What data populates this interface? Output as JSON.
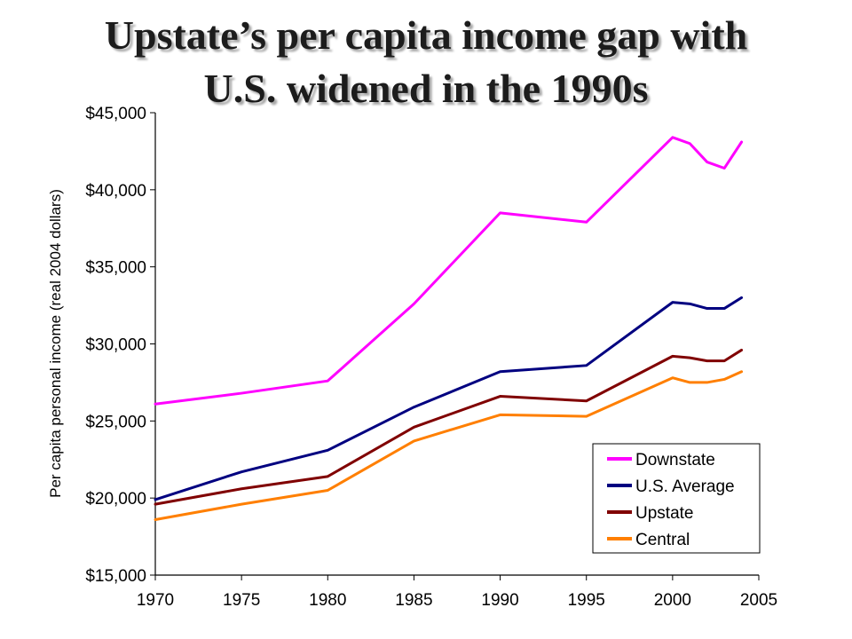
{
  "title_lines": [
    "Upstate’s per capita income gap with",
    "U.S. widened in the 1990s"
  ],
  "chart_data": {
    "type": "line",
    "title": "Upstate’s per capita income gap with U.S. widened in the 1990s",
    "xlabel": "",
    "ylabel": "Per capita personal income (real 2004 dollars)",
    "xlim": [
      1970,
      2005
    ],
    "ylim": [
      15000,
      45000
    ],
    "x_ticks": [
      1970,
      1975,
      1980,
      1985,
      1990,
      1995,
      2000,
      2005
    ],
    "y_ticks": [
      15000,
      20000,
      25000,
      30000,
      35000,
      40000,
      45000
    ],
    "x_tick_labels": [
      "1970",
      "1975",
      "1980",
      "1985",
      "1990",
      "1995",
      "2000",
      "2005"
    ],
    "y_tick_labels": [
      "$15,000",
      "$20,000",
      "$25,000",
      "$30,000",
      "$35,000",
      "$40,000",
      "$45,000"
    ],
    "grid": false,
    "legend_position": "bottom-right",
    "x": [
      1970,
      1975,
      1980,
      1985,
      1990,
      1995,
      2000,
      2001,
      2002,
      2003,
      2004
    ],
    "series": [
      {
        "name": "Downstate",
        "color": "#ff00ff",
        "values": [
          26100,
          26800,
          27600,
          32600,
          38500,
          37900,
          43400,
          43000,
          41800,
          41400,
          43100
        ]
      },
      {
        "name": "U.S. Average",
        "color": "#000080",
        "values": [
          19900,
          21700,
          23100,
          25900,
          28200,
          28600,
          32700,
          32600,
          32300,
          32300,
          33000
        ]
      },
      {
        "name": "Upstate",
        "color": "#800000",
        "values": [
          19600,
          20600,
          21400,
          24600,
          26600,
          26300,
          29200,
          29100,
          28900,
          28900,
          29600
        ]
      },
      {
        "name": "Central",
        "color": "#ff7f00",
        "values": [
          18600,
          19600,
          20500,
          23700,
          25400,
          25300,
          27800,
          27500,
          27500,
          27700,
          28200
        ]
      }
    ]
  }
}
